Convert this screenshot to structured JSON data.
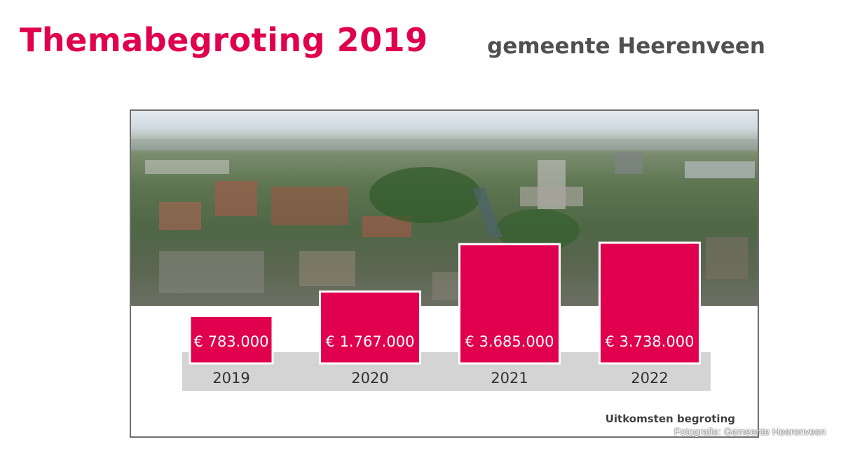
{
  "header": {
    "title": "Themabegroting 2019",
    "subtitle": "gemeente Heerenveen"
  },
  "chart_data": {
    "type": "bar",
    "categories": [
      "2019",
      "2020",
      "2021",
      "2022"
    ],
    "values": [
      783000,
      1767000,
      3685000,
      3738000
    ],
    "value_labels": [
      "€ 783.000",
      "€ 1.767.000",
      "€ 3.685.000",
      "€ 3.738.000"
    ],
    "title": "",
    "xlabel": "",
    "ylabel": "",
    "grid": false,
    "legend": "none",
    "bar_color": "#e0004d",
    "value_label_color": "#ffffff"
  },
  "footer": {
    "note": "Uitkomsten begroting",
    "photo_credit": "Fotografie: Gemeente Heerenveen"
  },
  "colors": {
    "accent": "#e0004d",
    "subtitle": "#505050",
    "axis_band": "#d4d4d4"
  }
}
